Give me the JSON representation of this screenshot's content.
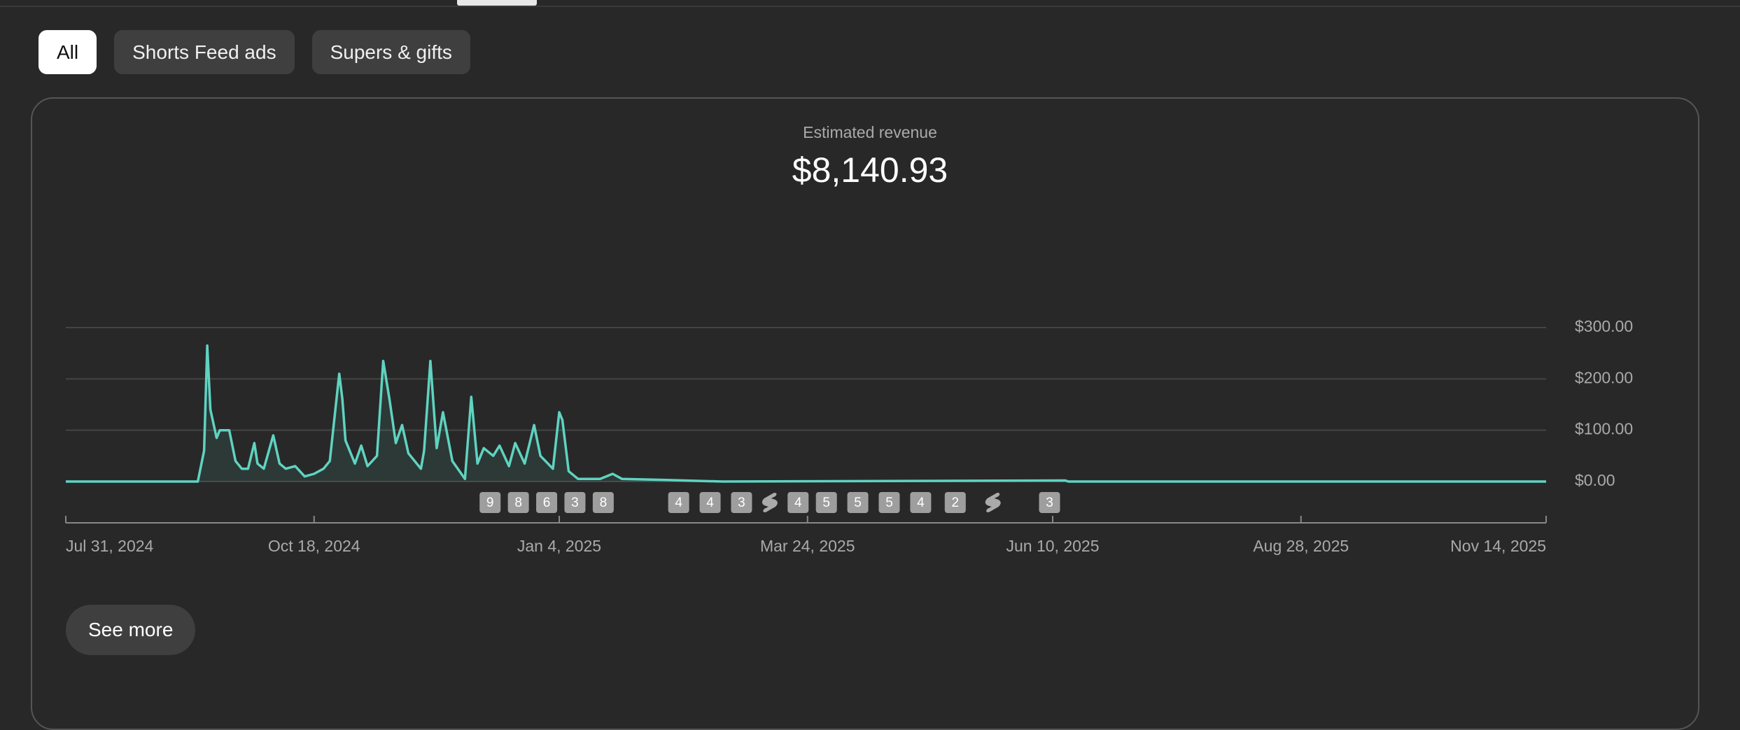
{
  "tabs": {
    "chips": [
      {
        "label": "All",
        "selected": true
      },
      {
        "label": "Shorts Feed ads",
        "selected": false
      },
      {
        "label": "Supers & gifts",
        "selected": false
      }
    ]
  },
  "card": {
    "title": "Estimated revenue",
    "total": "$8,140.93"
  },
  "chart_data": {
    "type": "line",
    "color": "#5fd3c0",
    "grid": true,
    "x": [
      "2024-07-31",
      "2024-09-11",
      "2024-09-13",
      "2024-09-14",
      "2024-09-15",
      "2024-09-17",
      "2024-09-18",
      "2024-09-21",
      "2024-09-23",
      "2024-09-25",
      "2024-09-27",
      "2024-09-29",
      "2024-09-30",
      "2024-10-02",
      "2024-10-05",
      "2024-10-07",
      "2024-10-09",
      "2024-10-12",
      "2024-10-15",
      "2024-10-18",
      "2024-10-21",
      "2024-10-23",
      "2024-10-26",
      "2024-10-27",
      "2024-10-28",
      "2024-10-31",
      "2024-11-02",
      "2024-11-04",
      "2024-11-07",
      "2024-11-09",
      "2024-11-11",
      "2024-11-13",
      "2024-11-15",
      "2024-11-17",
      "2024-11-21",
      "2024-11-22",
      "2024-11-24",
      "2024-11-26",
      "2024-11-28",
      "2024-12-01",
      "2024-12-05",
      "2024-12-07",
      "2024-12-09",
      "2024-12-11",
      "2024-12-14",
      "2024-12-16",
      "2024-12-19",
      "2024-12-21",
      "2024-12-24",
      "2024-12-27",
      "2024-12-29",
      "2025-01-02",
      "2025-01-04",
      "2025-01-05",
      "2025-01-07",
      "2025-01-10",
      "2025-01-17",
      "2025-01-21",
      "2025-01-24",
      "2025-02-07",
      "2025-02-25",
      "2025-06-14",
      "2025-06-15",
      "2025-11-14"
    ],
    "values": [
      0,
      0,
      60,
      265,
      140,
      85,
      100,
      100,
      40,
      25,
      25,
      75,
      35,
      25,
      90,
      35,
      25,
      30,
      10,
      15,
      25,
      40,
      210,
      160,
      80,
      35,
      70,
      30,
      50,
      235,
      160,
      75,
      110,
      55,
      25,
      60,
      235,
      65,
      135,
      40,
      5,
      165,
      35,
      65,
      50,
      70,
      30,
      75,
      35,
      110,
      50,
      25,
      135,
      120,
      20,
      5,
      5,
      15,
      5,
      3,
      0,
      2,
      0,
      0
    ],
    "xlim": [
      "2024-07-31",
      "2025-11-14"
    ],
    "xticks": [
      {
        "value": "2024-07-31",
        "label": "Jul 31, 2024"
      },
      {
        "value": "2024-10-18",
        "label": "Oct 18, 2024"
      },
      {
        "value": "2025-01-04",
        "label": "Jan 4, 2025"
      },
      {
        "value": "2025-03-24",
        "label": "Mar 24, 2025"
      },
      {
        "value": "2025-06-10",
        "label": "Jun 10, 2025"
      },
      {
        "value": "2025-08-28",
        "label": "Aug 28, 2025"
      },
      {
        "value": "2025-11-14",
        "label": "Nov 14, 2025"
      }
    ],
    "ylim": [
      0,
      300
    ],
    "yticks": [
      {
        "value": 0,
        "label": "$0.00"
      },
      {
        "value": 100,
        "label": "$100.00"
      },
      {
        "value": 200,
        "label": "$200.00"
      },
      {
        "value": 300,
        "label": "$300.00"
      }
    ],
    "markers": [
      {
        "x": "2024-12-13",
        "label": "9"
      },
      {
        "x": "2024-12-22",
        "label": "8"
      },
      {
        "x": "2024-12-31",
        "label": "6"
      },
      {
        "x": "2025-01-09",
        "label": "3"
      },
      {
        "x": "2025-01-18",
        "label": "8"
      },
      {
        "x": "2025-02-11",
        "label": "4"
      },
      {
        "x": "2025-02-21",
        "label": "4"
      },
      {
        "x": "2025-03-03",
        "label": "3"
      },
      {
        "x": "2025-03-12",
        "icon": "shorts"
      },
      {
        "x": "2025-03-21",
        "label": "4"
      },
      {
        "x": "2025-03-30",
        "label": "5"
      },
      {
        "x": "2025-04-09",
        "label": "5"
      },
      {
        "x": "2025-04-19",
        "label": "5"
      },
      {
        "x": "2025-04-29",
        "label": "4"
      },
      {
        "x": "2025-05-10",
        "label": "2"
      },
      {
        "x": "2025-05-22",
        "icon": "shorts"
      },
      {
        "x": "2025-06-09",
        "label": "3"
      }
    ]
  },
  "button": {
    "label": "See more"
  }
}
